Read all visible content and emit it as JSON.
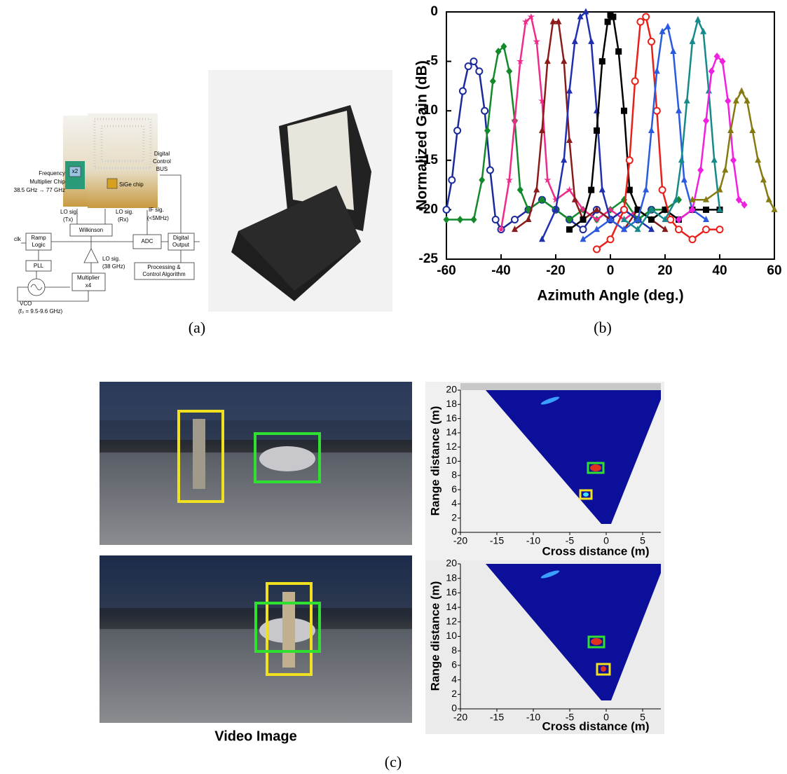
{
  "figure": {
    "panel_a": {
      "caption": "(a)",
      "diagram_labels": {
        "freq_1": "Frequency",
        "freq_2": "Multiplier Chip",
        "freq_3": "38.5 GHz → 77 GHz",
        "x2": "x2",
        "sige": "SiGe chip",
        "bus_1": "Digital",
        "bus_2": "Control",
        "bus_3": "BUS",
        "lo_tx_1": "LO sig.",
        "lo_tx_2": "(Tx)",
        "lo_rx_1": "LO sig.",
        "lo_rx_2": "(Rx)",
        "if_1": "IF sig.",
        "if_2": "(<5MHz)",
        "wilkinson": "Wilkinson",
        "clk": "clk",
        "ramp_1": "Ramp",
        "ramp_2": "Logic",
        "adc": "ADC",
        "dout_1": "Digital",
        "dout_2": "Output",
        "lo38_1": "LO sig.",
        "lo38_2": "(38 GHz)",
        "pll": "PLL",
        "proc_1": "Processing &",
        "proc_2": "Control Algorithm",
        "mult_1": "Multiplier",
        "mult_2": "x4",
        "vco_1": "VCO",
        "vco_2": "(f₀ = 9.5-9.6 GHz)"
      }
    },
    "panel_b": {
      "caption": "(b)"
    },
    "panel_c": {
      "caption": "(c)",
      "video_caption": "Video Image"
    }
  },
  "chart_data": [
    {
      "type": "line",
      "xlabel": "Azimuth Angle (deg.)",
      "ylabel": "Normalized Gain (dB)",
      "xlim": [
        -60,
        60
      ],
      "ylim": [
        -25,
        0
      ],
      "xticks": [
        -60,
        -40,
        -20,
        0,
        20,
        40,
        60
      ],
      "yticks": [
        -25,
        -20,
        -15,
        -10,
        -5,
        0
      ],
      "grid": false,
      "series": [
        {
          "color": "#1a2a9c",
          "marker": "circle",
          "x": [
            -60,
            -58,
            -56,
            -54,
            -52,
            -50,
            -48,
            -46,
            -44,
            -42,
            -40,
            -35,
            -30,
            -25,
            -20,
            -15,
            -10,
            -5,
            0,
            5,
            10,
            15
          ],
          "values": [
            -20,
            -17,
            -12,
            -8,
            -5.5,
            -5,
            -6,
            -10,
            -16,
            -21,
            -22,
            -21,
            -20,
            -19,
            -20,
            -21,
            -22,
            -20,
            -21,
            -20,
            -21,
            -20
          ]
        },
        {
          "color": "#138a2a",
          "marker": "diamond",
          "x": [
            -60,
            -55,
            -50,
            -47,
            -45,
            -43,
            -41,
            -39,
            -37,
            -35,
            -33,
            -30,
            -25,
            -20,
            -15,
            -10,
            -5,
            0,
            5,
            10,
            15,
            20,
            25
          ],
          "values": [
            -21,
            -21,
            -21,
            -17,
            -12,
            -7,
            -4,
            -3.5,
            -6,
            -11,
            -18,
            -20,
            -19,
            -20,
            -21,
            -20,
            -21,
            -20,
            -19,
            -21,
            -20,
            -20,
            -19
          ]
        },
        {
          "color": "#ee2a8a",
          "marker": "star",
          "x": [
            -40,
            -37,
            -35,
            -33,
            -31,
            -29,
            -27,
            -25,
            -23,
            -20,
            -15,
            -10,
            -5,
            0,
            5,
            10
          ],
          "values": [
            -22,
            -17,
            -11,
            -5,
            -1,
            -0.5,
            -3,
            -9,
            -17,
            -19,
            -18,
            -20,
            -21,
            -20,
            -21,
            -20
          ]
        },
        {
          "color": "#8b1a1a",
          "marker": "triangle",
          "x": [
            -35,
            -30,
            -27,
            -25,
            -23,
            -21,
            -19,
            -17,
            -15,
            -13,
            -10,
            -5,
            0,
            5,
            10,
            15,
            20
          ],
          "values": [
            -22,
            -21,
            -18,
            -12,
            -5,
            -1,
            -1,
            -5,
            -13,
            -19,
            -21,
            -20,
            -21,
            -22,
            -20,
            -21,
            -22
          ]
        },
        {
          "color": "#1f2fb0",
          "marker": "triangle",
          "x": [
            -25,
            -20,
            -17,
            -15,
            -13,
            -11,
            -9,
            -7,
            -5,
            -3,
            0,
            5,
            10,
            15
          ],
          "values": [
            -23,
            -20,
            -15,
            -8,
            -3,
            -0.5,
            0,
            -3,
            -10,
            -18,
            -21,
            -20,
            -21,
            -22
          ]
        },
        {
          "color": "#000000",
          "marker": "square",
          "x": [
            -15,
            -10,
            -7,
            -5,
            -3,
            -1,
            0,
            1,
            3,
            5,
            7,
            10,
            15,
            20,
            25,
            30,
            35,
            40
          ],
          "values": [
            -22,
            -21,
            -18,
            -12,
            -5,
            -1,
            -0.3,
            -0.5,
            -4,
            -10,
            -18,
            -20,
            -21,
            -20,
            -21,
            -20,
            -20,
            -20
          ]
        },
        {
          "color": "#e8201a",
          "marker": "circle",
          "x": [
            -5,
            0,
            5,
            7,
            9,
            11,
            13,
            15,
            17,
            19,
            22,
            25,
            30,
            35,
            40
          ],
          "values": [
            -24,
            -23,
            -20,
            -15,
            -7,
            -1,
            -0.5,
            -3,
            -10,
            -18,
            -21,
            -22,
            -23,
            -22,
            -22
          ]
        },
        {
          "color": "#2a5ae0",
          "marker": "triangle",
          "x": [
            -10,
            -5,
            0,
            5,
            10,
            13,
            15,
            17,
            19,
            21,
            23,
            25,
            27,
            30,
            35
          ],
          "values": [
            -23,
            -22,
            -21,
            -22,
            -21,
            -18,
            -12,
            -6,
            -2,
            -1.5,
            -4,
            -10,
            -17,
            -20,
            -21
          ]
        },
        {
          "color": "#168a8a",
          "marker": "triangle",
          "x": [
            5,
            10,
            15,
            20,
            24,
            26,
            28,
            30,
            32,
            34,
            36,
            38,
            40
          ],
          "values": [
            -21,
            -22,
            -20,
            -21,
            -19,
            -15,
            -9,
            -3,
            -0.8,
            -2,
            -8,
            -15,
            -20
          ]
        },
        {
          "color": "#f020e0",
          "marker": "diamond",
          "x": [
            25,
            30,
            33,
            35,
            37,
            39,
            41,
            43,
            45,
            47,
            49
          ],
          "values": [
            -21,
            -20,
            -16,
            -11,
            -6,
            -4.5,
            -5,
            -9,
            -15,
            -19,
            -19.5
          ]
        },
        {
          "color": "#857a10",
          "marker": "triangle",
          "x": [
            30,
            35,
            40,
            42,
            44,
            46,
            48,
            50,
            52,
            54,
            56,
            58,
            60
          ],
          "values": [
            -19,
            -19,
            -18,
            -16,
            -12,
            -9,
            -8,
            -9,
            -12,
            -15,
            -17,
            -19,
            -20
          ]
        }
      ]
    },
    {
      "type": "heatmap",
      "xlabel": "Cross distance (m)",
      "ylabel": "Range distance (m)",
      "xlim": [
        -20,
        7.5
      ],
      "ylim": [
        0,
        20
      ],
      "xticks": [
        -20,
        -15,
        -10,
        -5,
        0,
        5
      ],
      "yticks": [
        0,
        2,
        4,
        6,
        8,
        10,
        12,
        14,
        16,
        18,
        20
      ]
    },
    {
      "type": "heatmap",
      "xlabel": "Cross distance (m)",
      "ylabel": "Range distance (m)",
      "xlim": [
        -20,
        7.5
      ],
      "ylim": [
        0,
        20
      ],
      "xticks": [
        -20,
        -15,
        -10,
        -5,
        0,
        5
      ],
      "yticks": [
        0,
        2,
        4,
        6,
        8,
        10,
        12,
        14,
        16,
        18,
        20
      ]
    }
  ]
}
